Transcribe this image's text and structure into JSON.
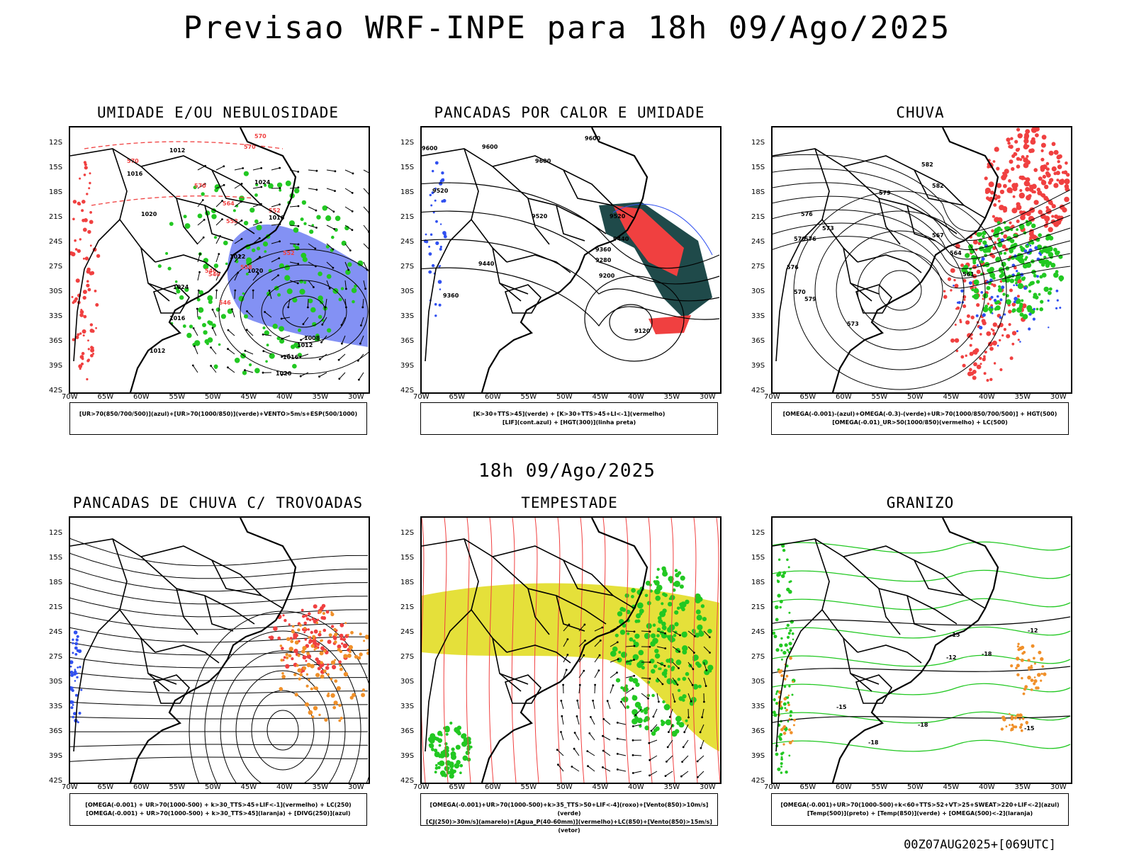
{
  "main_title": "Previsao WRF-INPE  para 18h 09/Ago/2025",
  "mid_title": "18h 09/Ago/2025",
  "run_label": "00Z07AUG2025+[069UTC]",
  "lat_labels": [
    "12S",
    "15S",
    "18S",
    "21S",
    "24S",
    "27S",
    "30S",
    "33S",
    "36S",
    "39S",
    "42S"
  ],
  "lon_labels": [
    "70W",
    "65W",
    "60W",
    "55W",
    "50W",
    "45W",
    "40W",
    "35W",
    "30W"
  ],
  "colors": {
    "humidity_blue": "#5a6cf0",
    "green": "#22c822",
    "red": "#f04040",
    "yellow": "#e5e03a",
    "orange": "#f0902a",
    "dark_teal": "#1f4a4a",
    "black": "#000000"
  },
  "panels": [
    {
      "title": "UMIDADE E/OU NEBULOSIDADE",
      "legend": [
        "[UR>70(850/700/500)](azul)+[UR>70(1000/850)](verde)+VENTO>5m/s+ESP(500/1000)"
      ],
      "contour_labels": [
        "1012",
        "1016",
        "1020",
        "1024",
        "1016",
        "1012",
        "1020",
        "1024",
        "1016",
        "1012",
        "1008",
        "1012",
        "1016",
        "1020"
      ],
      "red_labels": [
        "570",
        "570",
        "570",
        "570",
        "564",
        "558",
        "552",
        "546",
        "540",
        "546",
        "552",
        "558"
      ]
    },
    {
      "title": "PANCADAS POR CALOR E UMIDADE",
      "legend": [
        "[K>30+TTS>45](verde) + [K>30+TTS>45+LI<-1](vermelho)",
        "[LIF](cont.azul) + [HGT(300)](linha preta)"
      ],
      "contour_labels": [
        "9600",
        "9600",
        "9600",
        "9600",
        "9520",
        "9520",
        "9520",
        "9440",
        "9440",
        "9360",
        "9360",
        "9280",
        "9200",
        "9120"
      ]
    },
    {
      "title": "CHUVA",
      "legend": [
        "[OMEGA(-0.001)-(azul)+OMEGA(-0.3)-(verde)+UR>70(1000/850/700/500)] + HGT(500)",
        "[OMEGA(-0.01)_UR>50(1000/850)(vermelho) + LC(500)"
      ],
      "contour_labels": [
        "582",
        "582",
        "579",
        "576",
        "573",
        "570",
        "567",
        "564",
        "561",
        "573",
        "576",
        "579",
        "570",
        "576"
      ]
    },
    {
      "title": "PANCADAS DE CHUVA C/ TROVOADAS",
      "legend": [
        "[OMEGA(-0.001) + UR>70(1000-500) + k>30_TTS>45+LIF<-1](vermelho) + LC(250)",
        "[OMEGA(-0.001) + UR>70(1000-500) + k>30_TTS>45](laranja) + [DIVG(250)](azul)"
      ]
    },
    {
      "title": "TEMPESTADE",
      "legend": [
        "[OMEGA(-0.001)+UR>70(1000-500)+k>35_TTS>50+LIF<-4](roxo)+[Vento(850)>10m/s](verde)",
        "[CJ(250)>30m/s](amarelo)+[Agua_P(40-60mm)](vermelho)+LC(850)+[Vento(850)>15m/s](vetor)"
      ]
    },
    {
      "title": "GRANIZO",
      "legend": [
        "[OMEGA(-0.001)+UR>70(1000-500)+k<60+TTS>52+VT>25+SWEAT>220+LIF<-2](azul)",
        "[Temp(500)](preto) + [Temp(850)](verde) + [OMEGA(500)<-2](laranja)"
      ],
      "contour_labels": [
        "-12",
        "-15",
        "-12",
        "-18",
        "-18",
        "-15",
        "-18",
        "-15"
      ]
    }
  ]
}
